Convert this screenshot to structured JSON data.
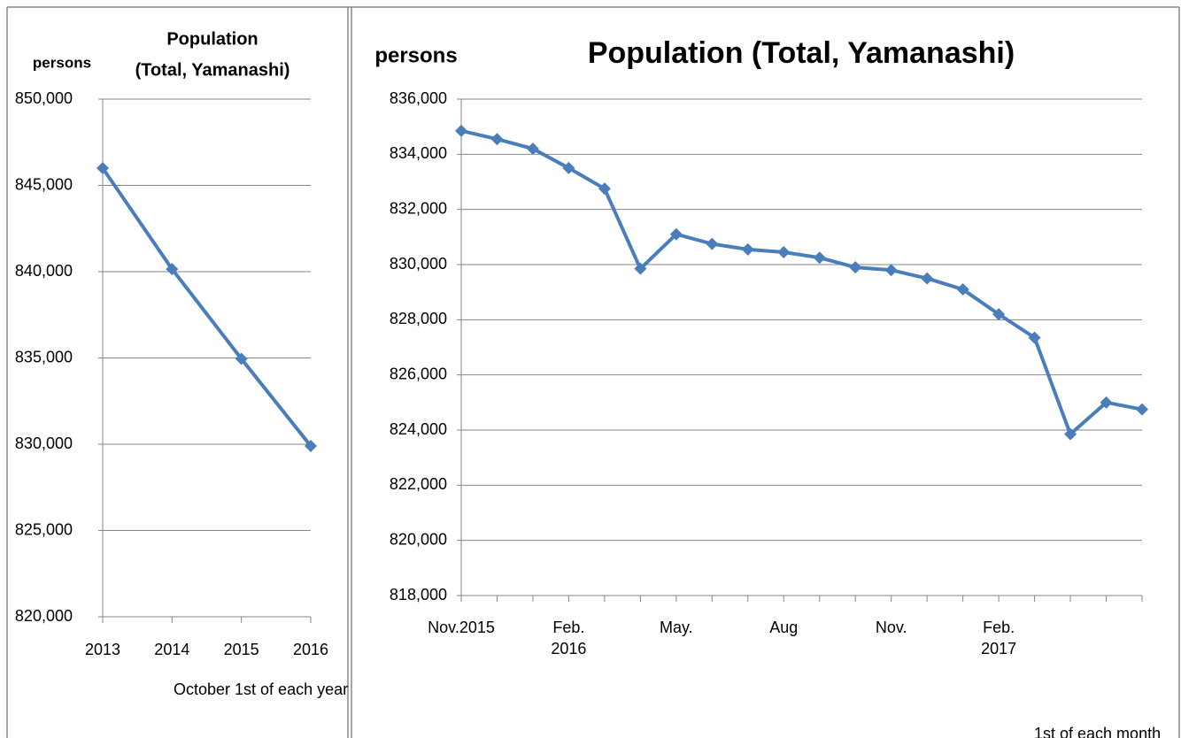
{
  "chart_data": [
    {
      "type": "line",
      "title": [
        "Population",
        "(Total, Yamanashi)"
      ],
      "y_label": "persons",
      "x_label": "October 1st of each year",
      "categories": [
        "2013",
        "2014",
        "2015",
        "2016"
      ],
      "series": [
        {
          "name": "Population",
          "color": "#4a7ebb",
          "values": [
            846000,
            840150,
            834950,
            829900
          ]
        }
      ],
      "ylim": [
        820000,
        850000
      ],
      "yticks": [
        {
          "value": 820000,
          "label": "820,000"
        },
        {
          "value": 825000,
          "label": "825,000"
        },
        {
          "value": 830000,
          "label": "830,000"
        },
        {
          "value": 835000,
          "label": "835,000"
        },
        {
          "value": 840000,
          "label": "840,000"
        },
        {
          "value": 845000,
          "label": "845,000"
        },
        {
          "value": 850000,
          "label": "850,000"
        }
      ],
      "grid": true
    },
    {
      "type": "line",
      "title": [
        "Population (Total, Yamanashi)"
      ],
      "y_label": "persons",
      "x_label": "1st of each month",
      "categories": [
        "Nov.2015",
        null,
        null,
        "Feb.\n2016",
        null,
        null,
        "May.",
        null,
        null,
        "Aug",
        null,
        null,
        "Nov.",
        null,
        null,
        "Feb.\n2017",
        null,
        null,
        null,
        null
      ],
      "series": [
        {
          "name": "Population",
          "color": "#4a7ebb",
          "values": [
            834850,
            834550,
            834200,
            833500,
            832750,
            829850,
            831100,
            830750,
            830550,
            830450,
            830250,
            829900,
            829800,
            829500,
            829100,
            828200,
            827350,
            823850,
            825000,
            824750
          ]
        }
      ],
      "ylim": [
        818000,
        836000
      ],
      "yticks": [
        {
          "value": 818000,
          "label": "818,000"
        },
        {
          "value": 820000,
          "label": "820,000"
        },
        {
          "value": 822000,
          "label": "822,000"
        },
        {
          "value": 824000,
          "label": "824,000"
        },
        {
          "value": 826000,
          "label": "826,000"
        },
        {
          "value": 828000,
          "label": "828,000"
        },
        {
          "value": 830000,
          "label": "830,000"
        },
        {
          "value": 832000,
          "label": "832,000"
        },
        {
          "value": 834000,
          "label": "834,000"
        },
        {
          "value": 836000,
          "label": "836,000"
        }
      ],
      "grid": true
    }
  ]
}
